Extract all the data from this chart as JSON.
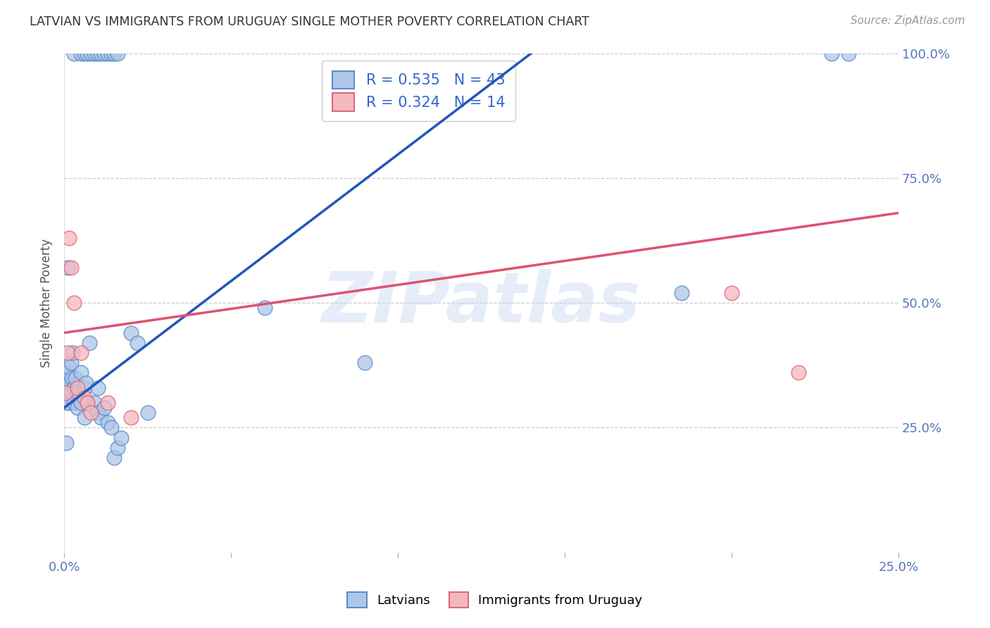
{
  "title": "LATVIAN VS IMMIGRANTS FROM URUGUAY SINGLE MOTHER POVERTY CORRELATION CHART",
  "source": "Source: ZipAtlas.com",
  "ylabel": "Single Mother Poverty",
  "xlim": [
    0,
    0.25
  ],
  "ylim": [
    0,
    1.0
  ],
  "blue_R": 0.535,
  "blue_N": 43,
  "pink_R": 0.324,
  "pink_N": 14,
  "blue_color": "#aec6e8",
  "blue_edge": "#5b8dc8",
  "pink_color": "#f5b8c0",
  "pink_edge": "#e06878",
  "blue_line_color": "#2255bb",
  "pink_line_color": "#e05070",
  "watermark": "ZIPatlas",
  "legend_label_color": "#3366cc",
  "legend_blue_label": "Latvians",
  "legend_pink_label": "Immigrants from Uruguay",
  "tick_color": "#5577bb",
  "ylabel_color": "#555555",
  "title_color": "#333333",
  "source_color": "#999999",
  "grid_color": "#cccccc",
  "blue_x": [
    0.0003,
    0.0005,
    0.0008,
    0.001,
    0.001,
    0.0012,
    0.0013,
    0.0015,
    0.0015,
    0.002,
    0.002,
    0.0022,
    0.0025,
    0.003,
    0.003,
    0.0033,
    0.004,
    0.004,
    0.005,
    0.005,
    0.006,
    0.006,
    0.0065,
    0.007,
    0.0075,
    0.009,
    0.01,
    0.01,
    0.011,
    0.012,
    0.013,
    0.014,
    0.015,
    0.016,
    0.017,
    0.02,
    0.022,
    0.025,
    0.06,
    0.09,
    0.185,
    0.23,
    0.235
  ],
  "blue_y": [
    0.33,
    0.22,
    0.3,
    0.57,
    0.35,
    0.34,
    0.36,
    0.3,
    0.37,
    0.32,
    0.38,
    0.35,
    0.4,
    0.3,
    0.33,
    0.35,
    0.32,
    0.29,
    0.3,
    0.36,
    0.27,
    0.33,
    0.34,
    0.3,
    0.42,
    0.3,
    0.28,
    0.33,
    0.27,
    0.29,
    0.26,
    0.25,
    0.19,
    0.21,
    0.23,
    0.44,
    0.42,
    0.28,
    0.49,
    0.38,
    0.52,
    1.0,
    1.0
  ],
  "blue_x_top": [
    0.003,
    0.005,
    0.006,
    0.007,
    0.008,
    0.009,
    0.01,
    0.011,
    0.012,
    0.013,
    0.014,
    0.015,
    0.016
  ],
  "blue_y_top": [
    1.0,
    1.0,
    1.0,
    1.0,
    1.0,
    1.0,
    1.0,
    1.0,
    1.0,
    1.0,
    1.0,
    1.0,
    1.0
  ],
  "pink_x": [
    0.0003,
    0.001,
    0.0015,
    0.002,
    0.003,
    0.004,
    0.005,
    0.006,
    0.007,
    0.008,
    0.013,
    0.02,
    0.2,
    0.22
  ],
  "pink_y": [
    0.32,
    0.4,
    0.63,
    0.57,
    0.5,
    0.33,
    0.4,
    0.31,
    0.3,
    0.28,
    0.3,
    0.27,
    0.52,
    0.36
  ],
  "blue_line_x0": 0.0,
  "blue_line_y0": 0.29,
  "blue_line_x1": 0.14,
  "blue_line_y1": 1.0,
  "pink_line_x0": 0.0,
  "pink_line_y0": 0.44,
  "pink_line_x1": 0.25,
  "pink_line_y1": 0.68
}
